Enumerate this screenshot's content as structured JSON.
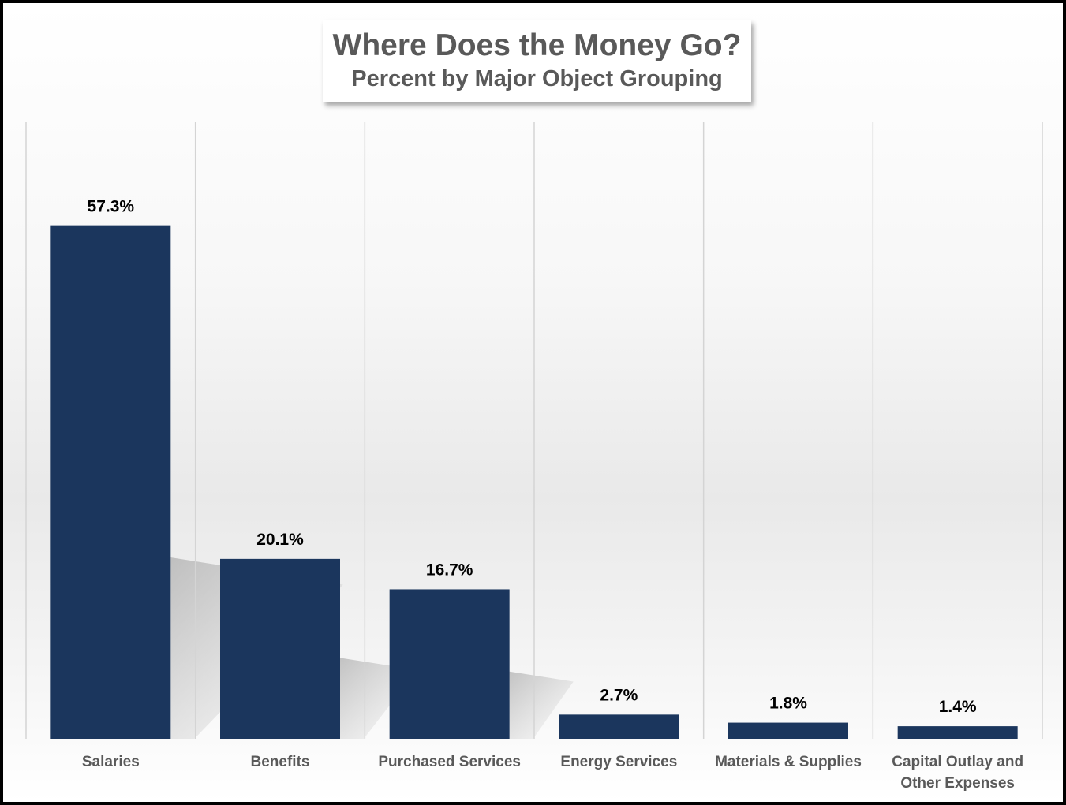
{
  "chart_data": {
    "type": "bar",
    "title": "Where Does the Money Go?",
    "subtitle": "Percent by Major Object Grouping",
    "categories": [
      "Salaries",
      "Benefits",
      "Purchased Services",
      "Energy Services",
      "Materials & Supplies",
      "Capital Outlay and Other Expenses"
    ],
    "values": [
      57.3,
      20.1,
      16.7,
      2.7,
      1.8,
      1.4
    ],
    "value_labels": [
      "57.3%",
      "20.1%",
      "16.7%",
      "2.7%",
      "1.8%",
      "1.4%"
    ],
    "unit": "%",
    "ylim": [
      0,
      70
    ],
    "grid": "vertical category separators",
    "legend": "none",
    "bar_color": "#1b365d"
  }
}
